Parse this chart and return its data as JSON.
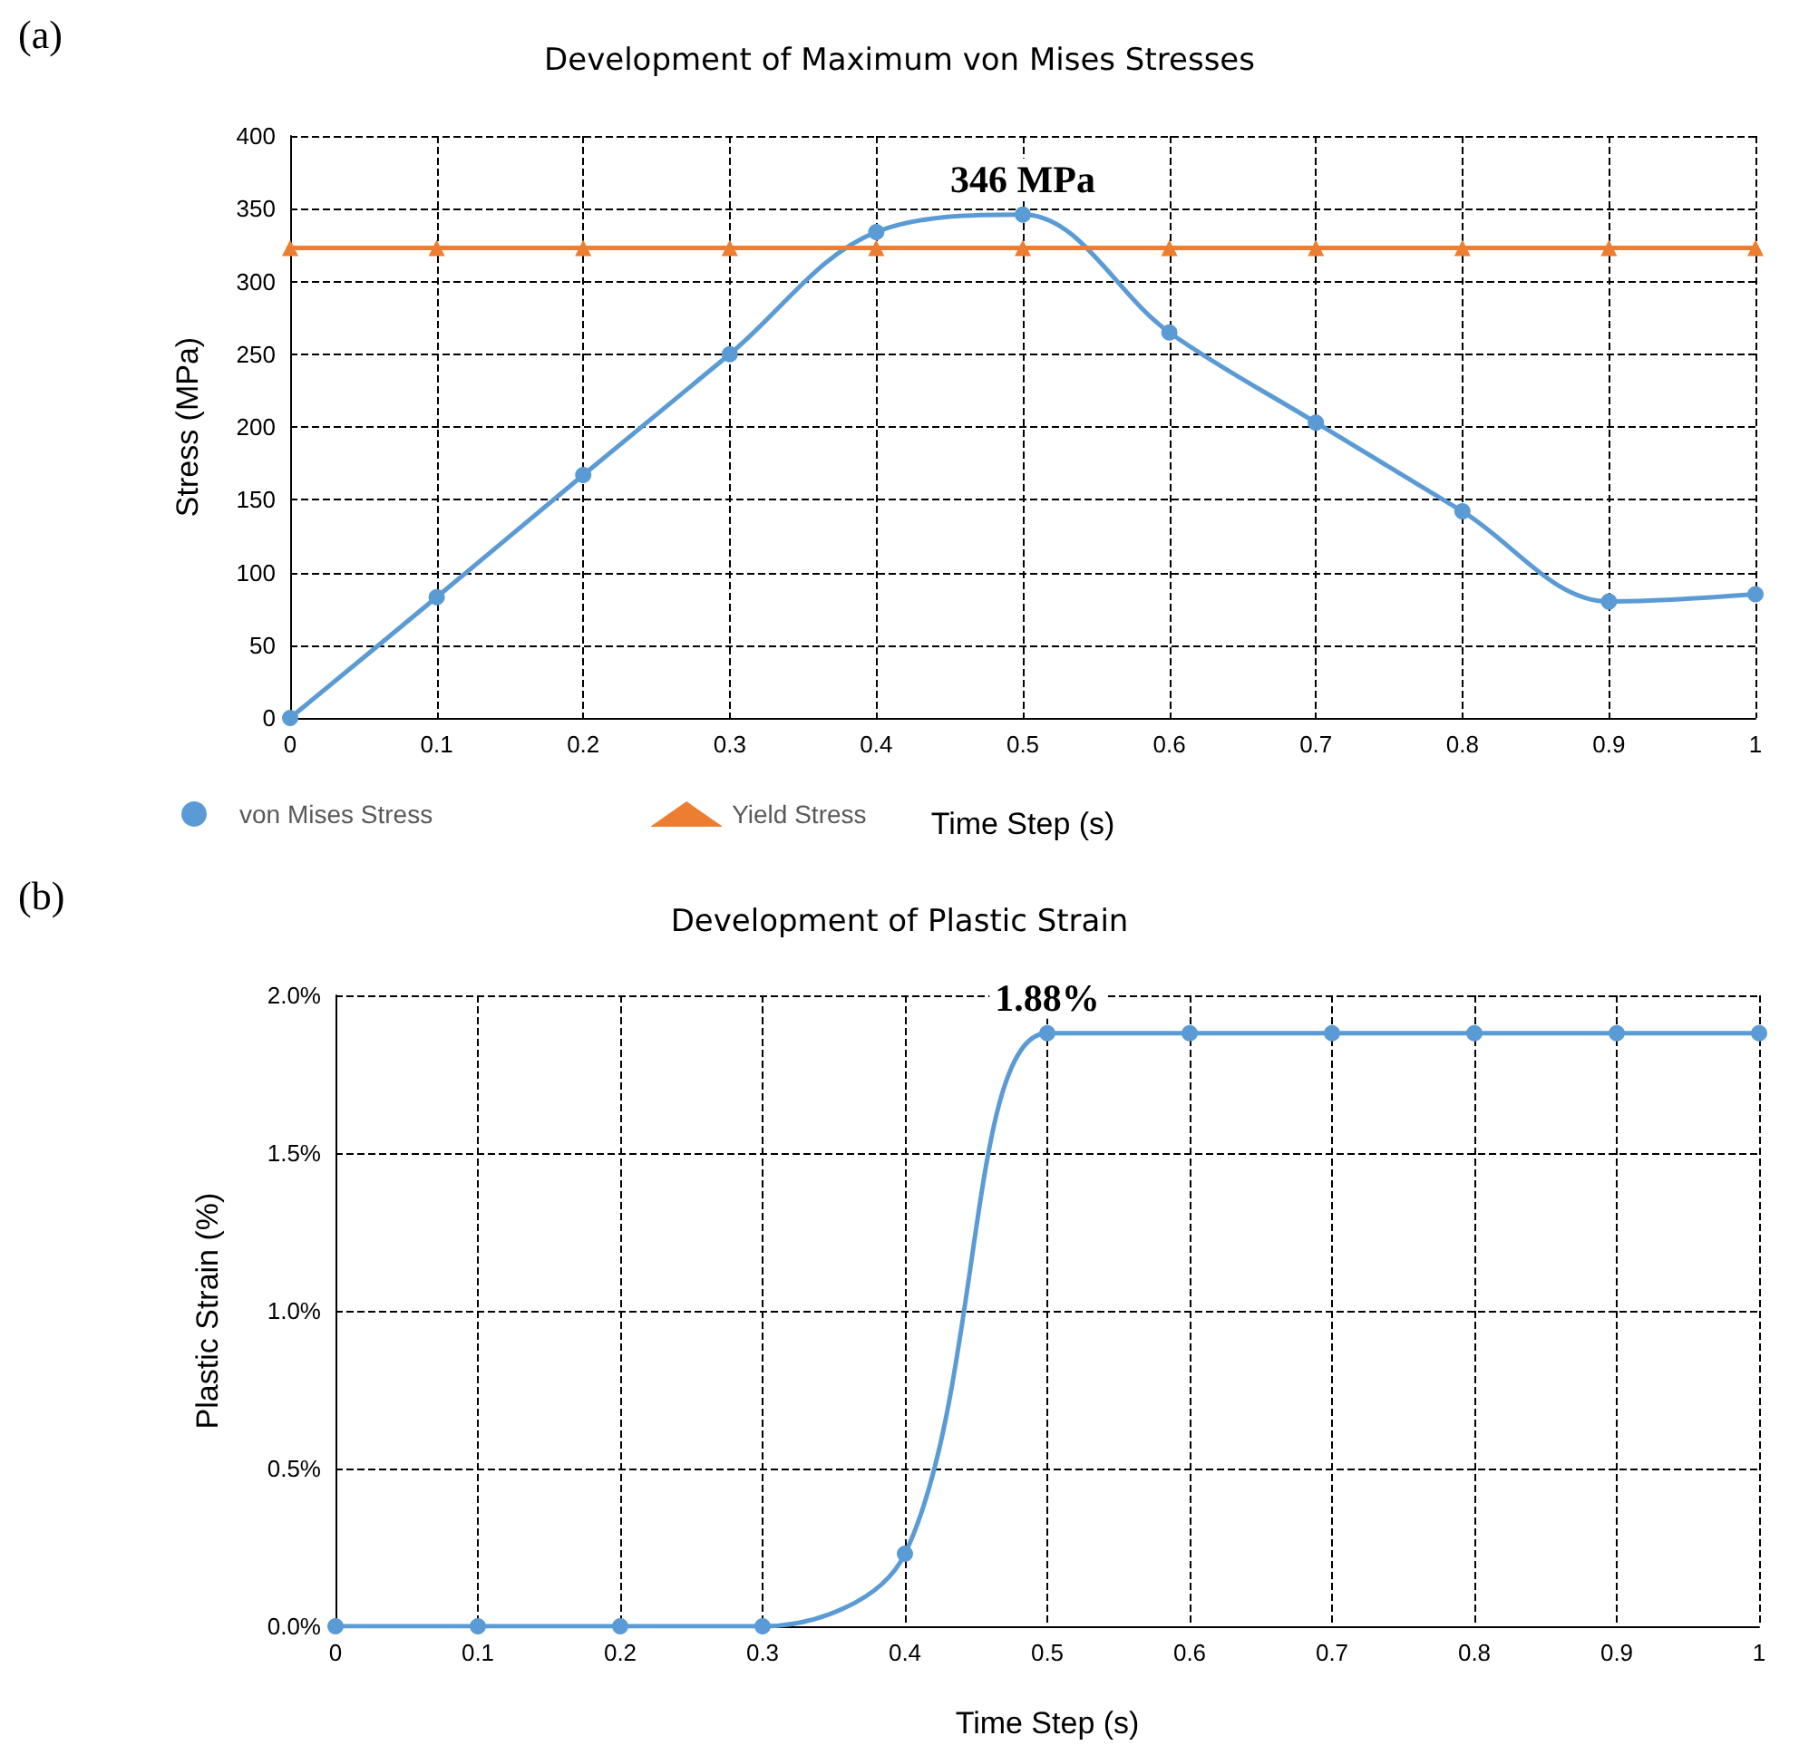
{
  "chart_data": [
    {
      "type": "line",
      "title": "Development of Maximum von Mises Stresses",
      "xlabel": "Time Step (s)",
      "ylabel": "Stress (MPa)",
      "x": [
        0,
        0.1,
        0.2,
        0.3,
        0.4,
        0.5,
        0.6,
        0.7,
        0.8,
        0.9,
        1
      ],
      "series": [
        {
          "name": "von Mises Stress",
          "color": "#5b9bd5",
          "marker": "circle",
          "values": [
            0,
            83,
            167,
            250,
            334,
            346,
            265,
            203,
            142,
            80,
            85
          ]
        },
        {
          "name": "Yield Stress",
          "color": "#ed7d31",
          "marker": "triangle",
          "values": [
            323,
            323,
            323,
            323,
            323,
            323,
            323,
            323,
            323,
            323,
            323
          ]
        }
      ],
      "xlim": [
        0,
        1
      ],
      "xticks": [
        0,
        0.1,
        0.2,
        0.3,
        0.4,
        0.5,
        0.6,
        0.7,
        0.8,
        0.9,
        1
      ],
      "ylim": [
        0,
        400
      ],
      "yticks": [
        0,
        50,
        100,
        150,
        200,
        250,
        300,
        350,
        400
      ],
      "grid": true,
      "legend": "bottom left",
      "annotations": [
        "(a)",
        {
          "text": "346 MPa",
          "x": 0.5,
          "y": 346
        }
      ]
    },
    {
      "type": "line",
      "title": "Development of Plastic Strain",
      "xlabel": "Time Step (s)",
      "ylabel": "Plastic Strain (%)",
      "x": [
        0,
        0.1,
        0.2,
        0.3,
        0.4,
        0.5,
        0.6,
        0.7,
        0.8,
        0.9,
        1
      ],
      "series": [
        {
          "color": "#5b9bd5",
          "marker": "circle",
          "values": [
            0,
            0,
            0,
            0,
            0.23,
            1.88,
            1.88,
            1.88,
            1.88,
            1.88,
            1.88
          ]
        }
      ],
      "xlim": [
        0,
        1
      ],
      "xticks": [
        0,
        0.1,
        0.2,
        0.3,
        0.4,
        0.5,
        0.6,
        0.7,
        0.8,
        0.9,
        1
      ],
      "ylim": [
        0,
        2
      ],
      "yticks": [
        {
          "value": 0,
          "label": "0.0%"
        },
        {
          "value": 0.5,
          "label": "0.5%"
        },
        {
          "value": 1,
          "label": "1.0%"
        },
        {
          "value": 1.5,
          "label": "1.5%"
        },
        {
          "value": 2,
          "label": "2.0%"
        }
      ],
      "grid": true,
      "annotations": [
        "(b)",
        {
          "text": "1.88%",
          "x": 0.5,
          "y": 1.88
        }
      ]
    }
  ]
}
